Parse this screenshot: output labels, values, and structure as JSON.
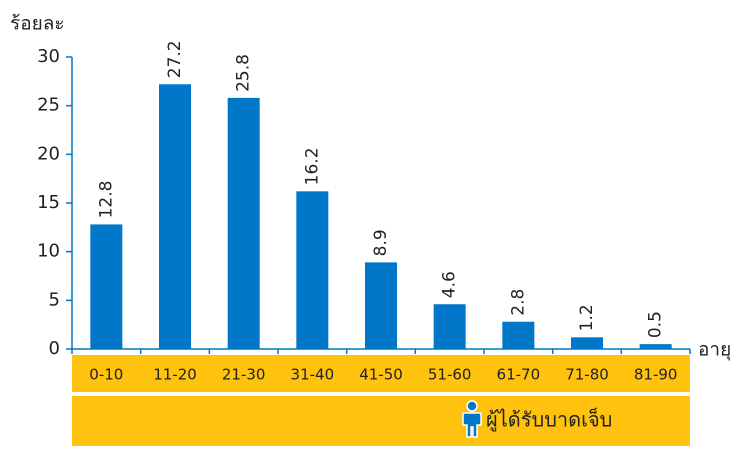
{
  "chart_data": {
    "type": "bar",
    "y_axis_label": "ร้อยละ",
    "x_axis_label": "อายุ",
    "categories": [
      "0-10",
      "11-20",
      "21-30",
      "31-40",
      "41-50",
      "51-60",
      "61-70",
      "71-80",
      "81-90"
    ],
    "series": [
      {
        "name": "ผู้ได้รับบาดเจ็บ",
        "color": "#0077c8",
        "values": [
          12.8,
          27.2,
          25.8,
          16.2,
          8.9,
          4.6,
          2.8,
          1.2,
          0.5
        ]
      }
    ],
    "ylim": [
      0,
      30
    ],
    "yticks": [
      0,
      5,
      10,
      15,
      20,
      25,
      30
    ]
  }
}
